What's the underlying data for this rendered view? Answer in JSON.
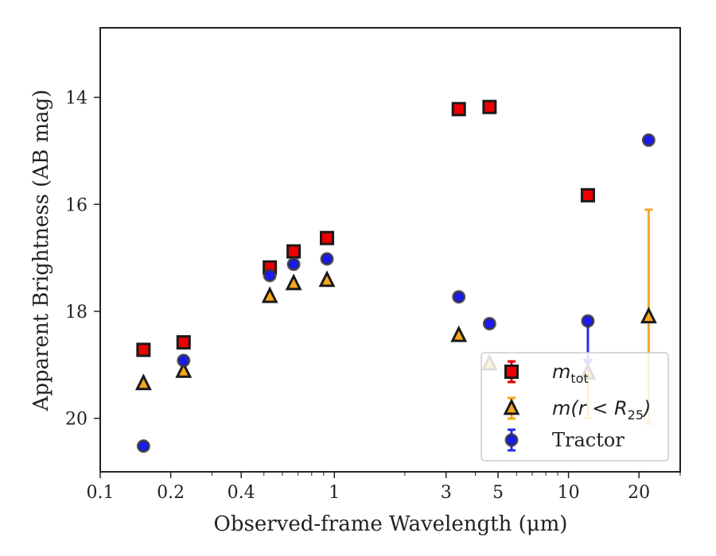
{
  "chart_data": {
    "type": "scatter",
    "title": "",
    "xlabel": "Observed-frame Wavelength (μm)",
    "ylabel": "Apparent Brightness (AB mag)",
    "xscale": "log",
    "yinverted": true,
    "xlim": [
      0.1,
      30
    ],
    "ylim": [
      21.0,
      12.7
    ],
    "xticks": [
      {
        "value": 0.1,
        "label": "0.1"
      },
      {
        "value": 0.2,
        "label": "0.2"
      },
      {
        "value": 0.4,
        "label": "0.4"
      },
      {
        "value": 1,
        "label": "1"
      },
      {
        "value": 3,
        "label": "3"
      },
      {
        "value": 5,
        "label": "5"
      },
      {
        "value": 10,
        "label": "10"
      },
      {
        "value": 20,
        "label": "20"
      }
    ],
    "yticks": [
      {
        "value": 14,
        "label": "14"
      },
      {
        "value": 16,
        "label": "16"
      },
      {
        "value": 18,
        "label": "18"
      },
      {
        "value": 20,
        "label": "20"
      }
    ],
    "grid": false,
    "legend_position": "bottom-right",
    "series": [
      {
        "name": "m_tot",
        "legend_main": "m",
        "legend_sub": "tot",
        "marker": "square",
        "color": "#ee0000",
        "errcolor": "#dd0000",
        "points": [
          {
            "x": 0.153,
            "y": 18.72
          },
          {
            "x": 0.227,
            "y": 18.58
          },
          {
            "x": 0.53,
            "y": 17.18
          },
          {
            "x": 0.67,
            "y": 16.88
          },
          {
            "x": 0.93,
            "y": 16.63
          },
          {
            "x": 3.4,
            "y": 14.22
          },
          {
            "x": 4.6,
            "y": 14.18
          },
          {
            "x": 12.1,
            "y": 15.83
          }
        ]
      },
      {
        "name": "m(r < R25)",
        "legend_main": "m(r < R",
        "legend_sub": "25",
        "legend_tail": ")",
        "marker": "triangle",
        "color": "#f9a81b",
        "errcolor": "#f5a623",
        "points": [
          {
            "x": 0.153,
            "y": 19.35
          },
          {
            "x": 0.227,
            "y": 19.12
          },
          {
            "x": 0.53,
            "y": 17.72
          },
          {
            "x": 0.67,
            "y": 17.48
          },
          {
            "x": 0.93,
            "y": 17.42
          },
          {
            "x": 3.4,
            "y": 18.45
          },
          {
            "x": 4.6,
            "y": 18.98
          },
          {
            "x": 12.1,
            "y": 19.15,
            "err_low": 20.0
          },
          {
            "x": 22.0,
            "y": 18.1,
            "err_high": 16.1,
            "err_low": 20.1
          }
        ]
      },
      {
        "name": "Tractor",
        "legend_main": "Tractor",
        "marker": "circle",
        "color": "#1a1aee",
        "errcolor": "#2a2aee",
        "points": [
          {
            "x": 0.153,
            "y": 20.52
          },
          {
            "x": 0.227,
            "y": 18.92
          },
          {
            "x": 0.53,
            "y": 17.33
          },
          {
            "x": 0.67,
            "y": 17.12
          },
          {
            "x": 0.93,
            "y": 17.02
          },
          {
            "x": 3.4,
            "y": 17.73
          },
          {
            "x": 4.6,
            "y": 18.23
          },
          {
            "x": 12.1,
            "y": 18.18,
            "upper_limit_to": 19.0
          },
          {
            "x": 22.0,
            "y": 14.8
          }
        ]
      }
    ]
  }
}
